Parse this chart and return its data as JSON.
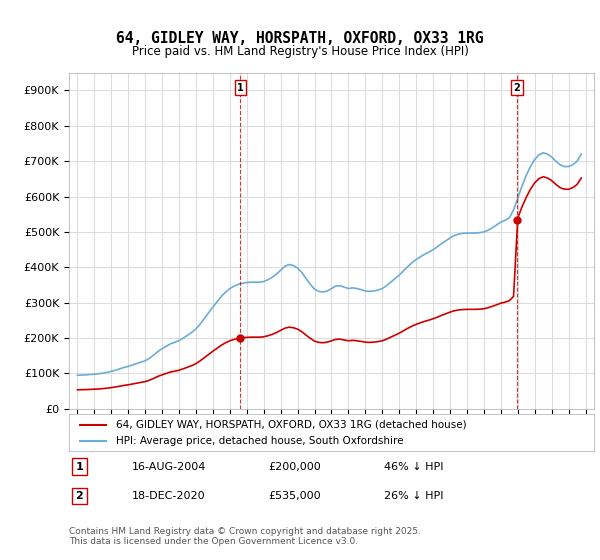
{
  "title": "64, GIDLEY WAY, HORSPATH, OXFORD, OX33 1RG",
  "subtitle": "Price paid vs. HM Land Registry's House Price Index (HPI)",
  "hpi_label": "HPI: Average price, detached house, South Oxfordshire",
  "property_label": "64, GIDLEY WAY, HORSPATH, OXFORD, OX33 1RG (detached house)",
  "sale1_date": "16-AUG-2004",
  "sale1_price": 200000,
  "sale1_pct": "46% ↓ HPI",
  "sale2_date": "18-DEC-2020",
  "sale2_price": 535000,
  "sale2_pct": "26% ↓ HPI",
  "copyright": "Contains HM Land Registry data © Crown copyright and database right 2025.\nThis data is licensed under the Open Government Licence v3.0.",
  "hpi_color": "#6aadd5",
  "property_color": "#cc0000",
  "sale_marker_color": "#cc0000",
  "dashed_line_color": "#cc0000",
  "background_color": "#ffffff",
  "grid_color": "#dddddd",
  "ylim": [
    0,
    950000
  ],
  "yticks": [
    0,
    100000,
    200000,
    300000,
    400000,
    500000,
    600000,
    700000,
    800000,
    900000
  ],
  "ytick_labels": [
    "£0",
    "£100K",
    "£200K",
    "£300K",
    "£400K",
    "£500K",
    "£600K",
    "£700K",
    "£800K",
    "£900K"
  ],
  "hpi_dates": [
    1995.0,
    1995.25,
    1995.5,
    1995.75,
    1996.0,
    1996.25,
    1996.5,
    1996.75,
    1997.0,
    1997.25,
    1997.5,
    1997.75,
    1998.0,
    1998.25,
    1998.5,
    1998.75,
    1999.0,
    1999.25,
    1999.5,
    1999.75,
    2000.0,
    2000.25,
    2000.5,
    2000.75,
    2001.0,
    2001.25,
    2001.5,
    2001.75,
    2002.0,
    2002.25,
    2002.5,
    2002.75,
    2003.0,
    2003.25,
    2003.5,
    2003.75,
    2004.0,
    2004.25,
    2004.5,
    2004.75,
    2005.0,
    2005.25,
    2005.5,
    2005.75,
    2006.0,
    2006.25,
    2006.5,
    2006.75,
    2007.0,
    2007.25,
    2007.5,
    2007.75,
    2008.0,
    2008.25,
    2008.5,
    2008.75,
    2009.0,
    2009.25,
    2009.5,
    2009.75,
    2010.0,
    2010.25,
    2010.5,
    2010.75,
    2011.0,
    2011.25,
    2011.5,
    2011.75,
    2012.0,
    2012.25,
    2012.5,
    2012.75,
    2013.0,
    2013.25,
    2013.5,
    2013.75,
    2014.0,
    2014.25,
    2014.5,
    2014.75,
    2015.0,
    2015.25,
    2015.5,
    2015.75,
    2016.0,
    2016.25,
    2016.5,
    2016.75,
    2017.0,
    2017.25,
    2017.5,
    2017.75,
    2018.0,
    2018.25,
    2018.5,
    2018.75,
    2019.0,
    2019.25,
    2019.5,
    2019.75,
    2020.0,
    2020.25,
    2020.5,
    2020.75,
    2021.0,
    2021.25,
    2021.5,
    2021.75,
    2022.0,
    2022.25,
    2022.5,
    2022.75,
    2023.0,
    2023.25,
    2023.5,
    2023.75,
    2024.0,
    2024.25,
    2024.5,
    2024.75
  ],
  "hpi_values": [
    95000,
    95500,
    96000,
    97000,
    98000,
    99000,
    101000,
    103000,
    106000,
    109000,
    113000,
    117000,
    120000,
    124000,
    128000,
    132000,
    136000,
    143000,
    152000,
    162000,
    170000,
    177000,
    184000,
    188000,
    193000,
    200000,
    208000,
    216000,
    226000,
    240000,
    256000,
    272000,
    288000,
    303000,
    318000,
    330000,
    340000,
    347000,
    352000,
    355000,
    357000,
    358000,
    358000,
    358000,
    360000,
    365000,
    372000,
    381000,
    392000,
    403000,
    408000,
    405000,
    398000,
    385000,
    368000,
    352000,
    338000,
    332000,
    330000,
    333000,
    340000,
    347000,
    348000,
    344000,
    340000,
    342000,
    340000,
    337000,
    333000,
    332000,
    333000,
    336000,
    340000,
    348000,
    358000,
    368000,
    378000,
    390000,
    402000,
    413000,
    422000,
    430000,
    437000,
    443000,
    450000,
    458000,
    467000,
    475000,
    483000,
    490000,
    494000,
    496000,
    497000,
    497000,
    497000,
    498000,
    500000,
    505000,
    512000,
    520000,
    528000,
    533000,
    540000,
    562000,
    596000,
    630000,
    660000,
    685000,
    705000,
    718000,
    724000,
    720000,
    712000,
    700000,
    690000,
    685000,
    685000,
    690000,
    700000,
    720000
  ],
  "property_dates": [
    1995.0,
    1995.25,
    1995.5,
    1995.75,
    1996.0,
    1996.25,
    1996.5,
    1996.75,
    1997.0,
    1997.25,
    1997.5,
    1997.75,
    1998.0,
    1998.25,
    1998.5,
    1998.75,
    1999.0,
    1999.25,
    1999.5,
    1999.75,
    2000.0,
    2000.25,
    2000.5,
    2000.75,
    2001.0,
    2001.25,
    2001.5,
    2001.75,
    2002.0,
    2002.25,
    2002.5,
    2002.75,
    2003.0,
    2003.25,
    2003.5,
    2003.75,
    2004.0,
    2004.25,
    2004.5,
    2004.75,
    2005.0,
    2005.25,
    2005.5,
    2005.75,
    2006.0,
    2006.25,
    2006.5,
    2006.75,
    2007.0,
    2007.25,
    2007.5,
    2007.75,
    2008.0,
    2008.25,
    2008.5,
    2008.75,
    2009.0,
    2009.25,
    2009.5,
    2009.75,
    2010.0,
    2010.25,
    2010.5,
    2010.75,
    2011.0,
    2011.25,
    2011.5,
    2011.75,
    2012.0,
    2012.25,
    2012.5,
    2012.75,
    2013.0,
    2013.25,
    2013.5,
    2013.75,
    2014.0,
    2014.25,
    2014.5,
    2014.75,
    2015.0,
    2015.25,
    2015.5,
    2015.75,
    2016.0,
    2016.25,
    2016.5,
    2016.75,
    2017.0,
    2017.25,
    2017.5,
    2017.75,
    2018.0,
    2018.25,
    2018.5,
    2018.75,
    2019.0,
    2019.25,
    2019.5,
    2019.75,
    2020.0,
    2020.25,
    2020.5,
    2020.75,
    2021.0,
    2021.25,
    2021.5,
    2021.75,
    2022.0,
    2022.25,
    2022.5,
    2022.75,
    2023.0,
    2023.25,
    2023.5,
    2023.75,
    2024.0,
    2024.25,
    2024.5,
    2024.75
  ],
  "sale1_x": 2004.625,
  "sale2_x": 2020.958,
  "xlim_left": 1994.5,
  "xlim_right": 2025.5
}
